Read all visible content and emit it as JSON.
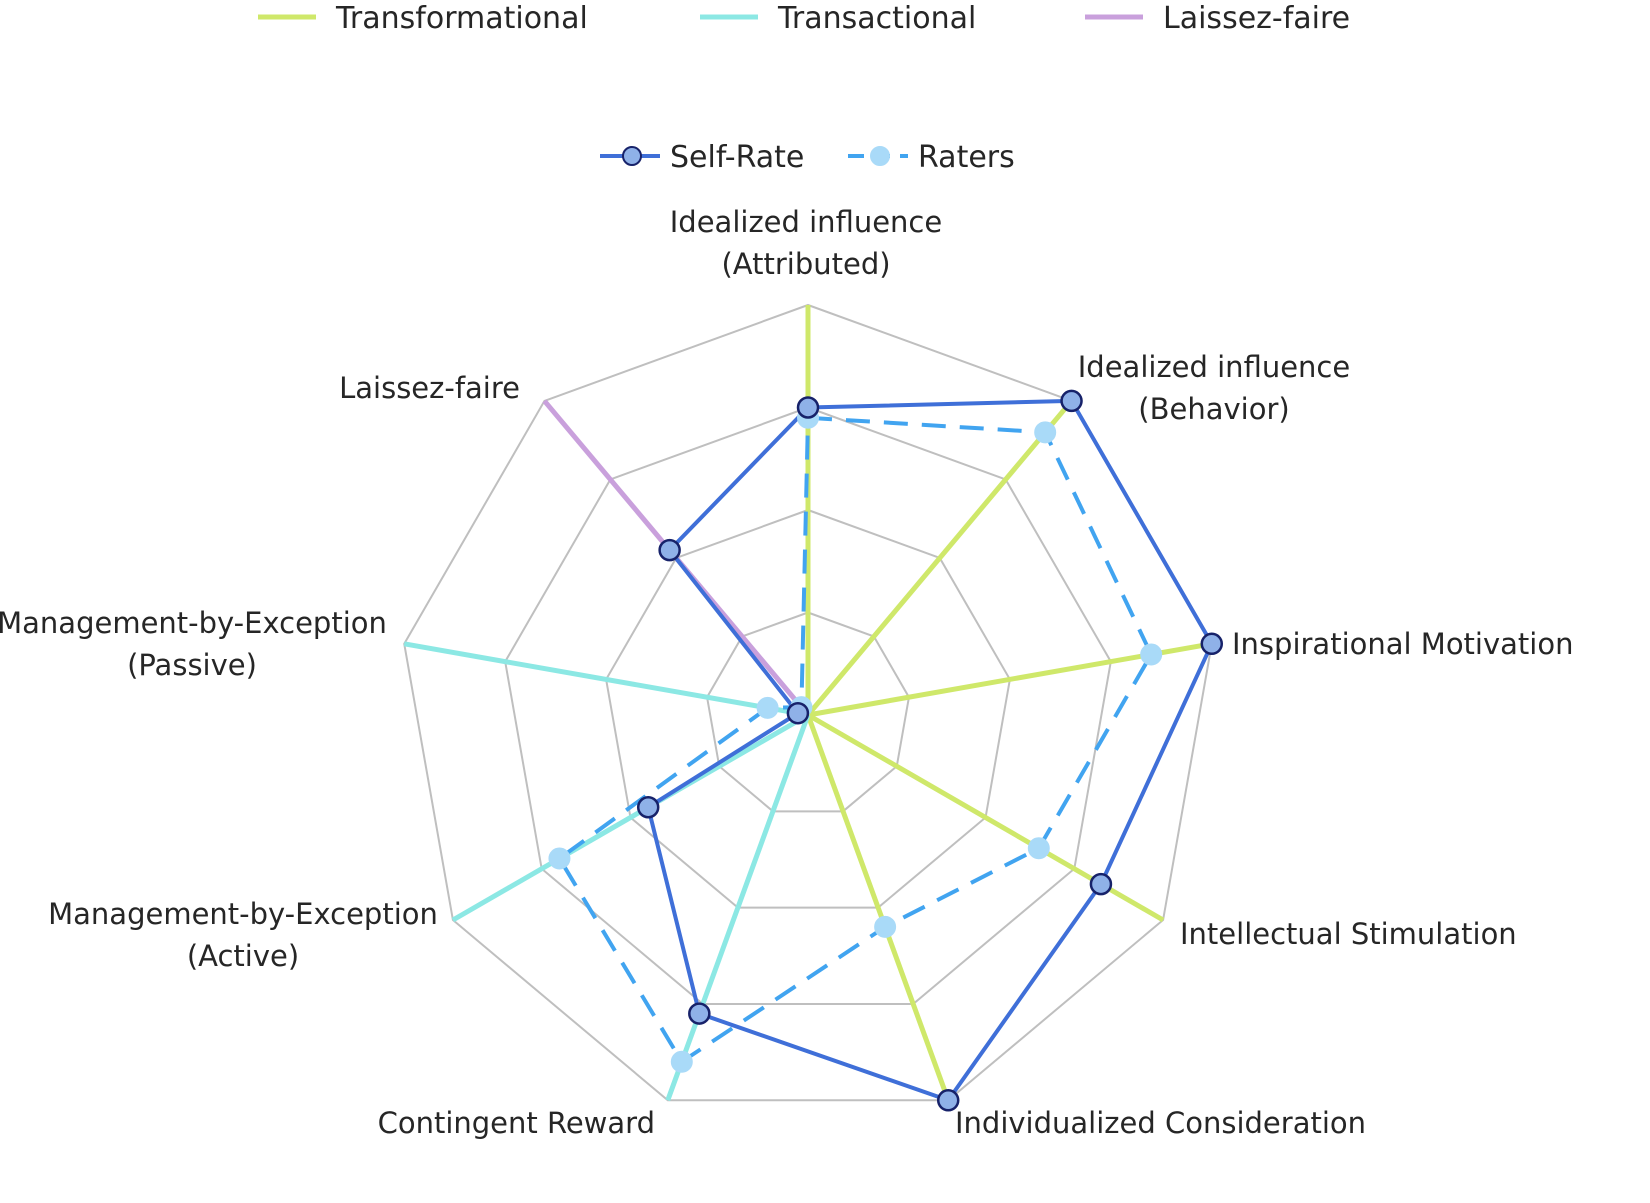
{
  "colors": {
    "transformational": "#cfe86a",
    "transactional": "#8ce8e4",
    "laissez_faire": "#c9a0dc",
    "self_rate": "#3f6fd8",
    "raters": "#41a4f0",
    "grid": "#bfbfbf"
  },
  "legend_top": {
    "items": [
      {
        "label": "Transformational",
        "color": "#cfe86a"
      },
      {
        "label": "Transactional",
        "color": "#8ce8e4"
      },
      {
        "label": "Laissez-faire",
        "color": "#c9a0dc"
      }
    ]
  },
  "chart_data": {
    "type": "radar",
    "axes": [
      [
        "Idealized influence",
        "(Attributed)"
      ],
      [
        "Idealized influence",
        "(Behavior)"
      ],
      [
        "Inspirational Motivation"
      ],
      [
        "Intellectual Stimulation"
      ],
      [
        "Individualized Consideration"
      ],
      [
        "Contingent Reward"
      ],
      [
        "Management-by-Exception",
        "(Active)"
      ],
      [
        "Management-by-Exception",
        "(Passive)"
      ],
      [
        "Laissez-faire"
      ]
    ],
    "axis_groups": [
      "Transformational",
      "Transformational",
      "Transformational",
      "Transformational",
      "Transformational",
      "Transactional",
      "Transactional",
      "Transactional",
      "Laissez-faire"
    ],
    "range": [
      0,
      4
    ],
    "rings": 4,
    "series": [
      {
        "name": "Self-Rate",
        "style": "solid",
        "values": [
          3.0,
          4.0,
          4.0,
          3.3,
          4.0,
          3.1,
          1.8,
          0.1,
          2.1
        ]
      },
      {
        "name": "Raters",
        "style": "dashed",
        "values": [
          2.9,
          3.6,
          3.4,
          2.6,
          2.2,
          3.6,
          2.8,
          0.4,
          0.1
        ]
      }
    ]
  }
}
